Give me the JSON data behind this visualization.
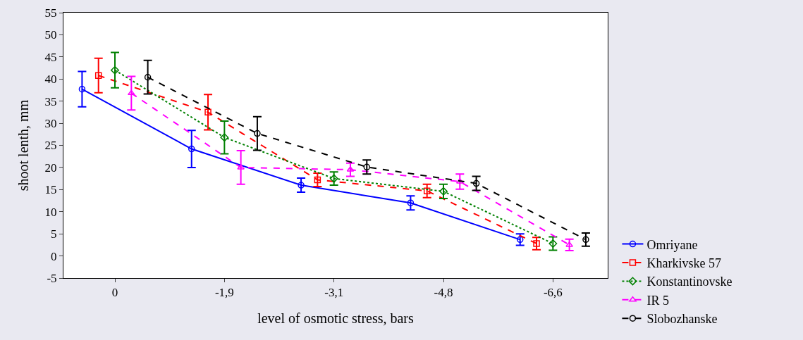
{
  "chart_data": {
    "type": "line",
    "xlabel": "level of osmotic stress, bars",
    "ylabel": "shoot lenth, mm",
    "categories": [
      "0",
      "-1,9",
      "-3,1",
      "-4,8",
      "-6,6"
    ],
    "ylim": [
      -5,
      55
    ],
    "yticks": [
      -5,
      0,
      5,
      10,
      15,
      20,
      25,
      30,
      35,
      40,
      45,
      50,
      55
    ],
    "grid": false,
    "legend": "bottom right",
    "series": [
      {
        "name": "Omriyane",
        "color": "#0000ff",
        "line_style": "solid",
        "marker": "circle",
        "values": [
          37.7,
          24.2,
          16,
          12,
          3.7
        ],
        "errors": [
          4,
          4.2,
          1.6,
          1.6,
          1.3
        ]
      },
      {
        "name": "Kharkivske 57",
        "color": "#ff0000",
        "line_style": "dashed",
        "marker": "square",
        "values": [
          40.8,
          32.5,
          17.2,
          14.7,
          2.8
        ],
        "errors": [
          3.9,
          4,
          1.5,
          1.5,
          1.4
        ]
      },
      {
        "name": "Konstantinovske",
        "color": "#008000",
        "line_style": "dotted",
        "marker": "diamond",
        "values": [
          42,
          26.8,
          17.5,
          14.6,
          2.8
        ],
        "errors": [
          4,
          3.7,
          1.5,
          1.6,
          1.5
        ]
      },
      {
        "name": "IR 5",
        "color": "#ff00ff",
        "line_style": "dashed",
        "marker": "triangle",
        "values": [
          36.8,
          20,
          19.5,
          16.8,
          2.5
        ],
        "errors": [
          3.8,
          3.8,
          1.5,
          1.7,
          1.3
        ]
      },
      {
        "name": "Slobozhanske",
        "color": "#000000",
        "line_style": "dashed",
        "marker": "circle",
        "values": [
          40.4,
          27.7,
          20.1,
          16.4,
          3.7
        ],
        "errors": [
          3.8,
          3.8,
          1.6,
          1.6,
          1.5
        ]
      }
    ]
  }
}
